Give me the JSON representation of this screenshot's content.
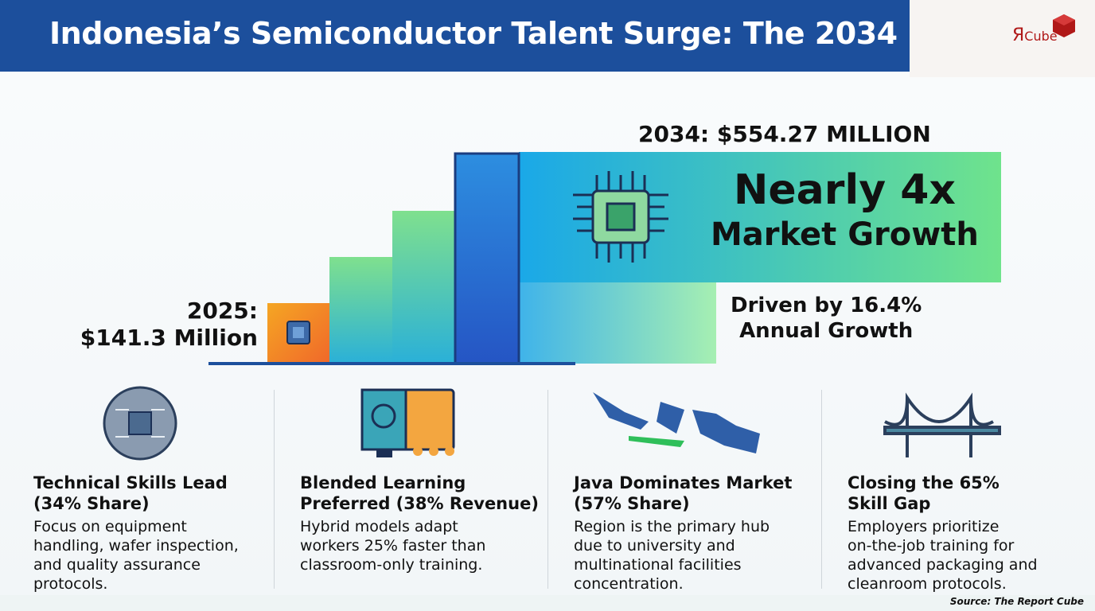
{
  "header": {
    "title": "Indonesia’s Semiconductor Talent Surge: The 2034",
    "logo_mark": "Я",
    "logo_text": "Cube"
  },
  "hero": {
    "label_2034": "2034: $554.27 MILLION",
    "headline": [
      "Nearly 4x",
      "Market Growth"
    ],
    "driver": [
      "Driven by 16.4%",
      "Annual Growth"
    ],
    "label_2025": [
      "2025:",
      "$141.3 Million"
    ]
  },
  "cards": [
    {
      "title": [
        "Technical Skills Lead",
        "(34% Share)"
      ],
      "body": [
        "Focus on equipment",
        "handling, wafer inspection,",
        "and quality assurance",
        "protocols."
      ]
    },
    {
      "title": [
        "Blended Learning",
        "Preferred (38% Revenue)"
      ],
      "body": [
        "Hybrid models adapt",
        "workers 25% faster than",
        "classroom-only training."
      ]
    },
    {
      "title": [
        "Java Dominates Market",
        "(57% Share)"
      ],
      "body": [
        "Region is the primary hub",
        "due to university and",
        "multinational facilities",
        "concentration."
      ]
    },
    {
      "title": [
        "Closing the 65%",
        "Skill Gap"
      ],
      "body": [
        "Employers prioritize",
        "on-the-job training for",
        "advanced packaging and",
        "cleanroom protocols."
      ]
    }
  ],
  "source": "Source: The Report Cube"
}
